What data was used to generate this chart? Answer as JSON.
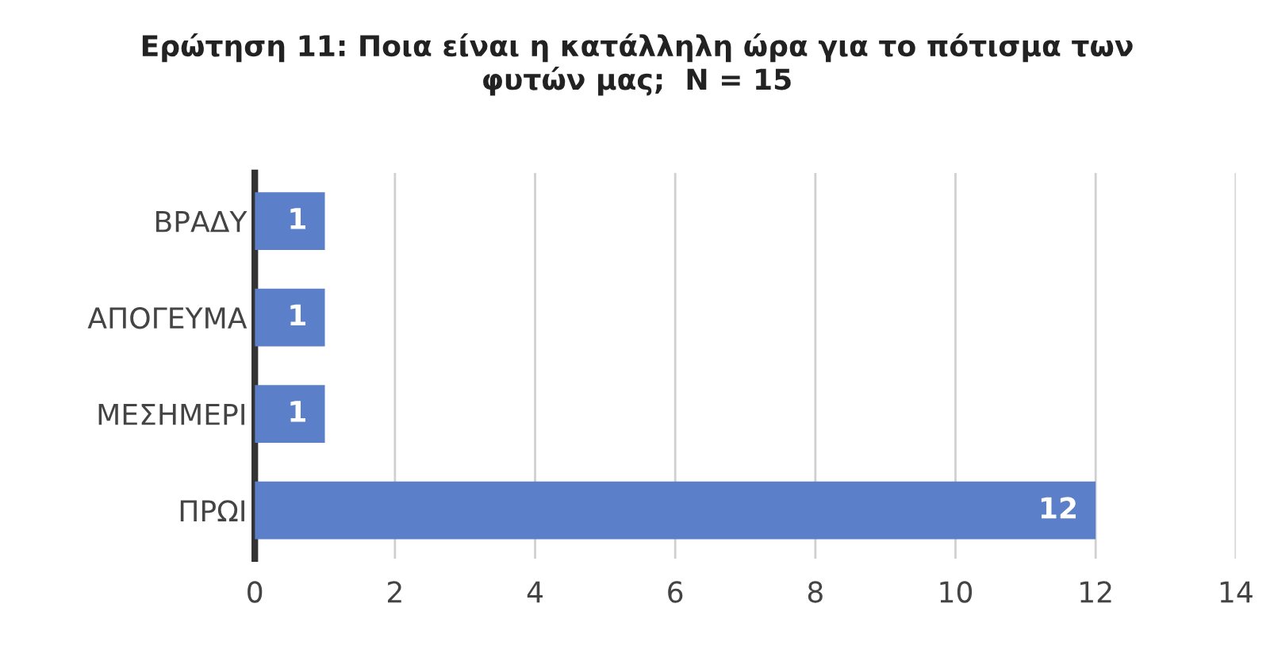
{
  "chart_data": {
    "type": "bar",
    "orientation": "horizontal",
    "title": "Ερώτηση 11: Ποια είναι η κατάλληλη ώρα για το πότισμα των\nφυτών μας;  N = 15",
    "categories": [
      "ΒΡΑΔΥ",
      "ΑΠΟΓΕΥΜΑ",
      "ΜΕΣΗΜΕΡΙ",
      "ΠΡΩΙ"
    ],
    "values": [
      1,
      1,
      1,
      12
    ],
    "color": "#5b7fc8",
    "xlim": [
      0,
      14
    ],
    "xticks": [
      0,
      2,
      4,
      6,
      8,
      10,
      12,
      14
    ],
    "grid": "x",
    "data_labels": true
  }
}
